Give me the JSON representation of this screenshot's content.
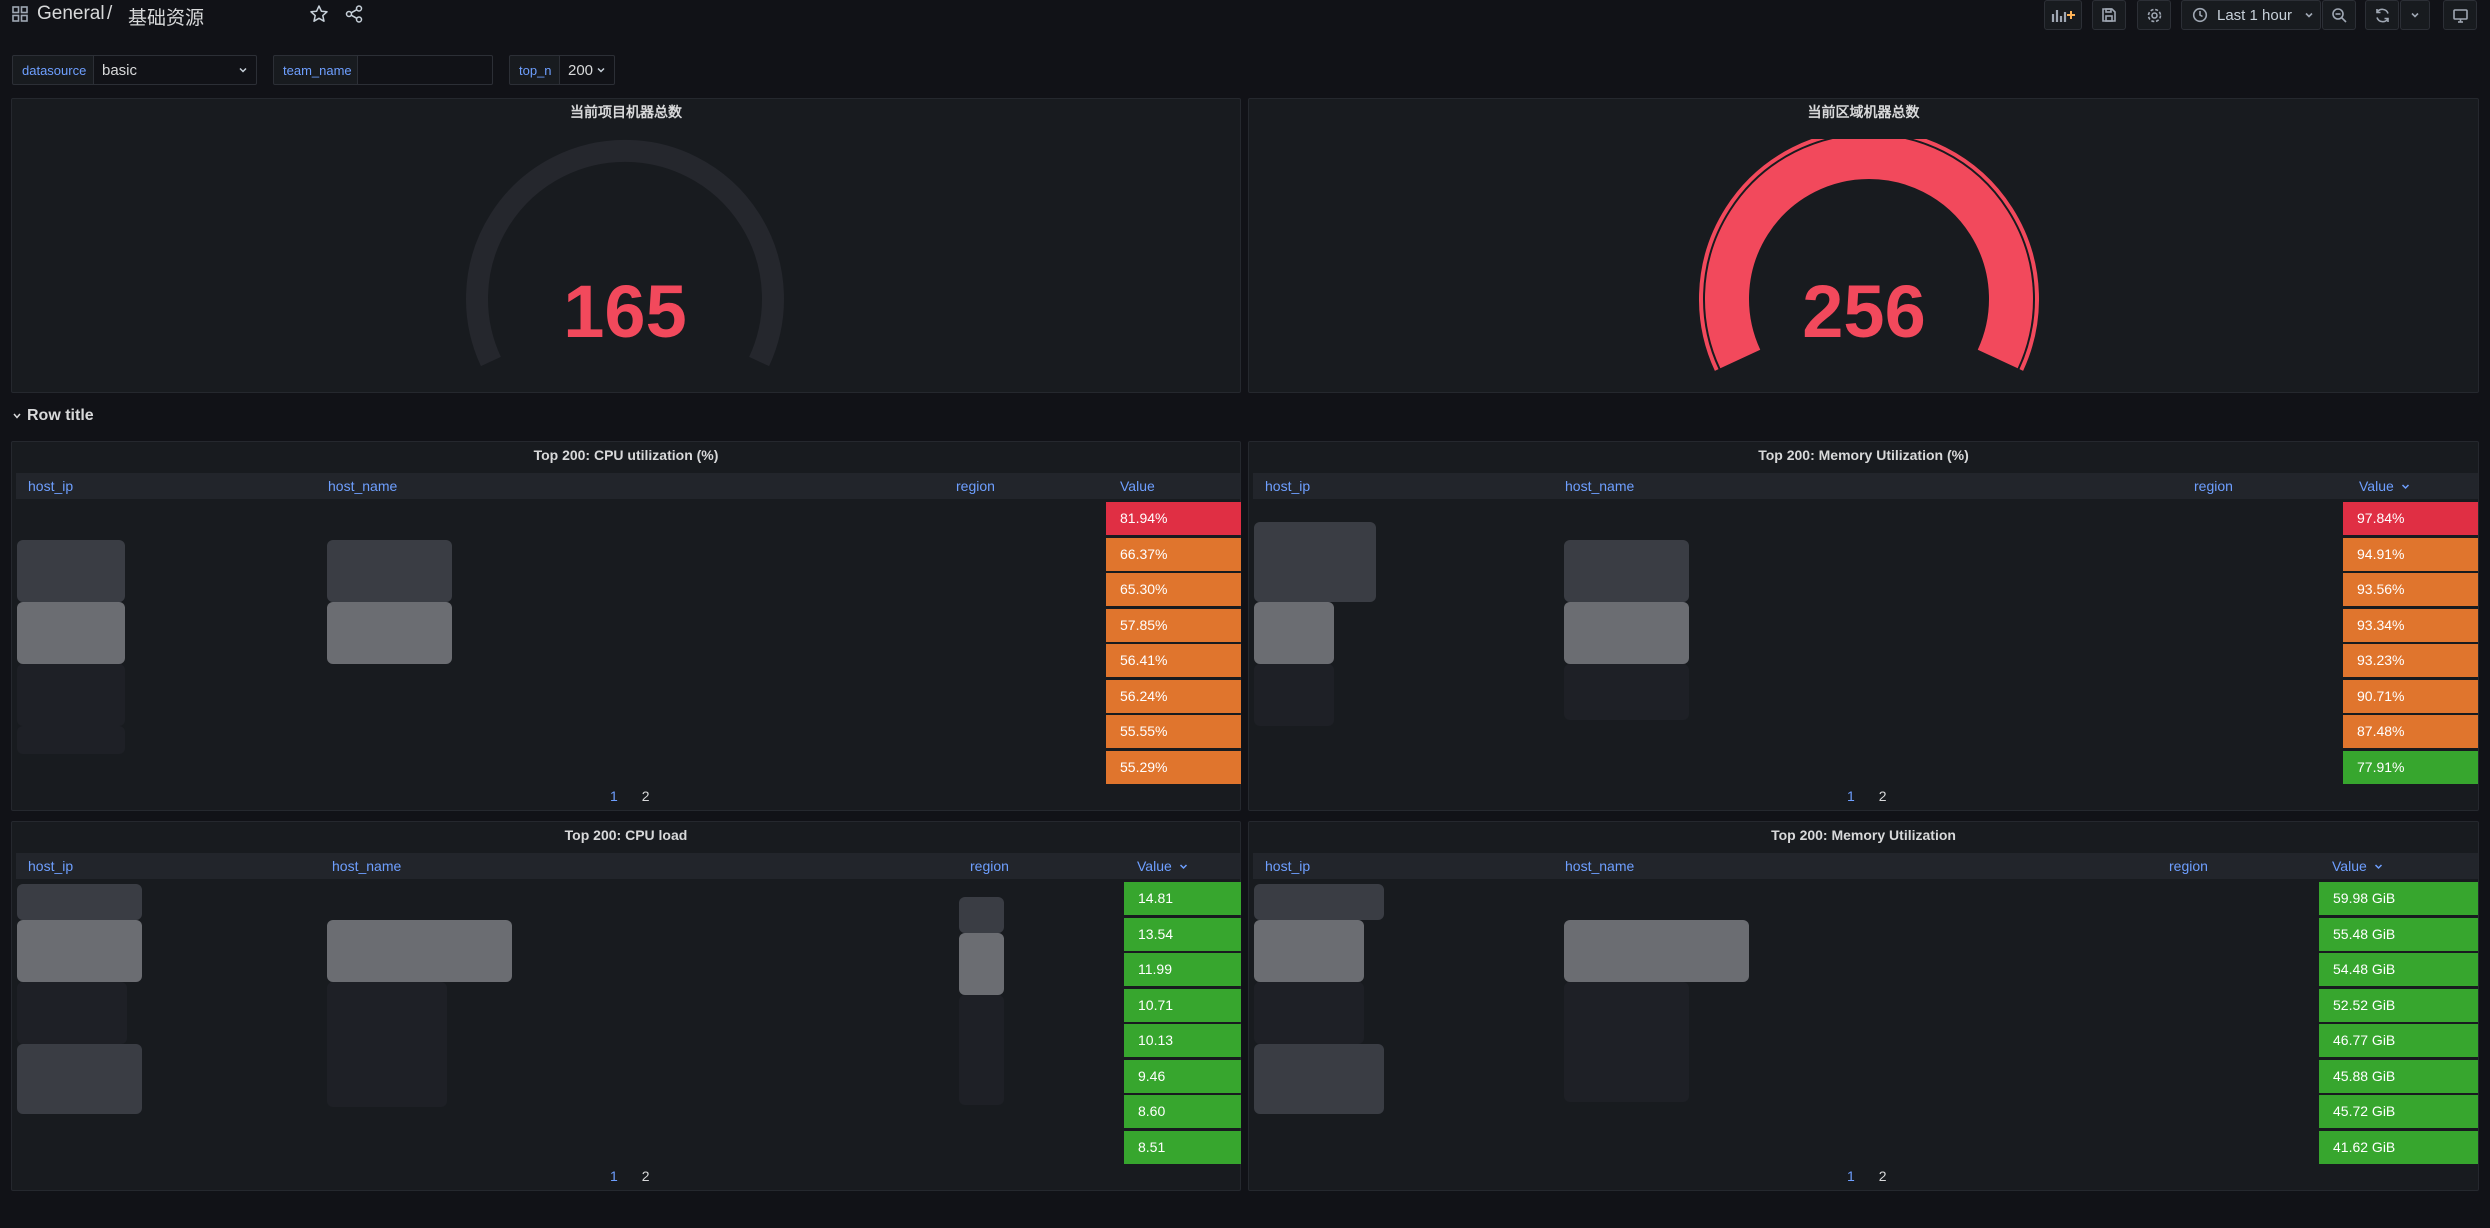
{
  "header": {
    "folder": "General",
    "separator": "/",
    "title": "基础资源",
    "time_range": "Last 1 hour"
  },
  "variables": [
    {
      "label": "datasource",
      "value": "basic"
    },
    {
      "label": "team_name",
      "value": ""
    },
    {
      "label": "top_n",
      "value": "200"
    }
  ],
  "stats": {
    "project": {
      "title": "当前项目机器总数",
      "value": "165",
      "fill": 0.0
    },
    "region": {
      "title": "当前区域机器总数",
      "value": "256",
      "fill": 1.0
    }
  },
  "row_title": "Row title",
  "tables": {
    "cpu_util": {
      "title": "Top 200: CPU utilization (%)",
      "columns": [
        "host_ip",
        "host_name",
        "region",
        "Value"
      ],
      "values": [
        "81.94%",
        "66.37%",
        "65.30%",
        "57.85%",
        "56.41%",
        "56.24%",
        "55.55%",
        "55.29%"
      ],
      "colors": [
        "#e02f44",
        "#e0752d",
        "#e0752d",
        "#e0752d",
        "#e0752d",
        "#e0752d",
        "#e0752d",
        "#e0752d"
      ],
      "pages": [
        "1",
        "2"
      ]
    },
    "mem_util": {
      "title": "Top 200: Memory Utilization (%)",
      "columns": [
        "host_ip",
        "host_name",
        "region",
        "Value"
      ],
      "values": [
        "97.84%",
        "94.91%",
        "93.56%",
        "93.34%",
        "93.23%",
        "90.71%",
        "87.48%",
        "77.91%"
      ],
      "colors": [
        "#e02f44",
        "#e0752d",
        "#e0752d",
        "#e0752d",
        "#e0752d",
        "#e0752d",
        "#e0752d",
        "#37a62e"
      ],
      "pages": [
        "1",
        "2"
      ]
    },
    "cpu_load": {
      "title": "Top 200: CPU load",
      "columns": [
        "host_ip",
        "host_name",
        "region",
        "Value"
      ],
      "values": [
        "14.81",
        "13.54",
        "11.99",
        "10.71",
        "10.13",
        "9.46",
        "8.60",
        "8.51"
      ],
      "colors": [
        "#37a62e",
        "#37a62e",
        "#37a62e",
        "#37a62e",
        "#37a62e",
        "#37a62e",
        "#37a62e",
        "#37a62e"
      ],
      "pages": [
        "1",
        "2"
      ]
    },
    "mem_bytes": {
      "title": "Top 200: Memory Utilization",
      "columns": [
        "host_ip",
        "host_name",
        "region",
        "Value"
      ],
      "values": [
        "59.98 GiB",
        "55.48 GiB",
        "54.48 GiB",
        "52.52 GiB",
        "46.77 GiB",
        "45.88 GiB",
        "45.72 GiB",
        "41.62 GiB"
      ],
      "colors": [
        "#37a62e",
        "#37a62e",
        "#37a62e",
        "#37a62e",
        "#37a62e",
        "#37a62e",
        "#37a62e",
        "#37a62e"
      ],
      "pages": [
        "1",
        "2"
      ]
    }
  },
  "colors": {
    "background": "#111217",
    "panel": "#181b1f",
    "accent_blue": "#6e9fff",
    "red": "#f2495c"
  }
}
